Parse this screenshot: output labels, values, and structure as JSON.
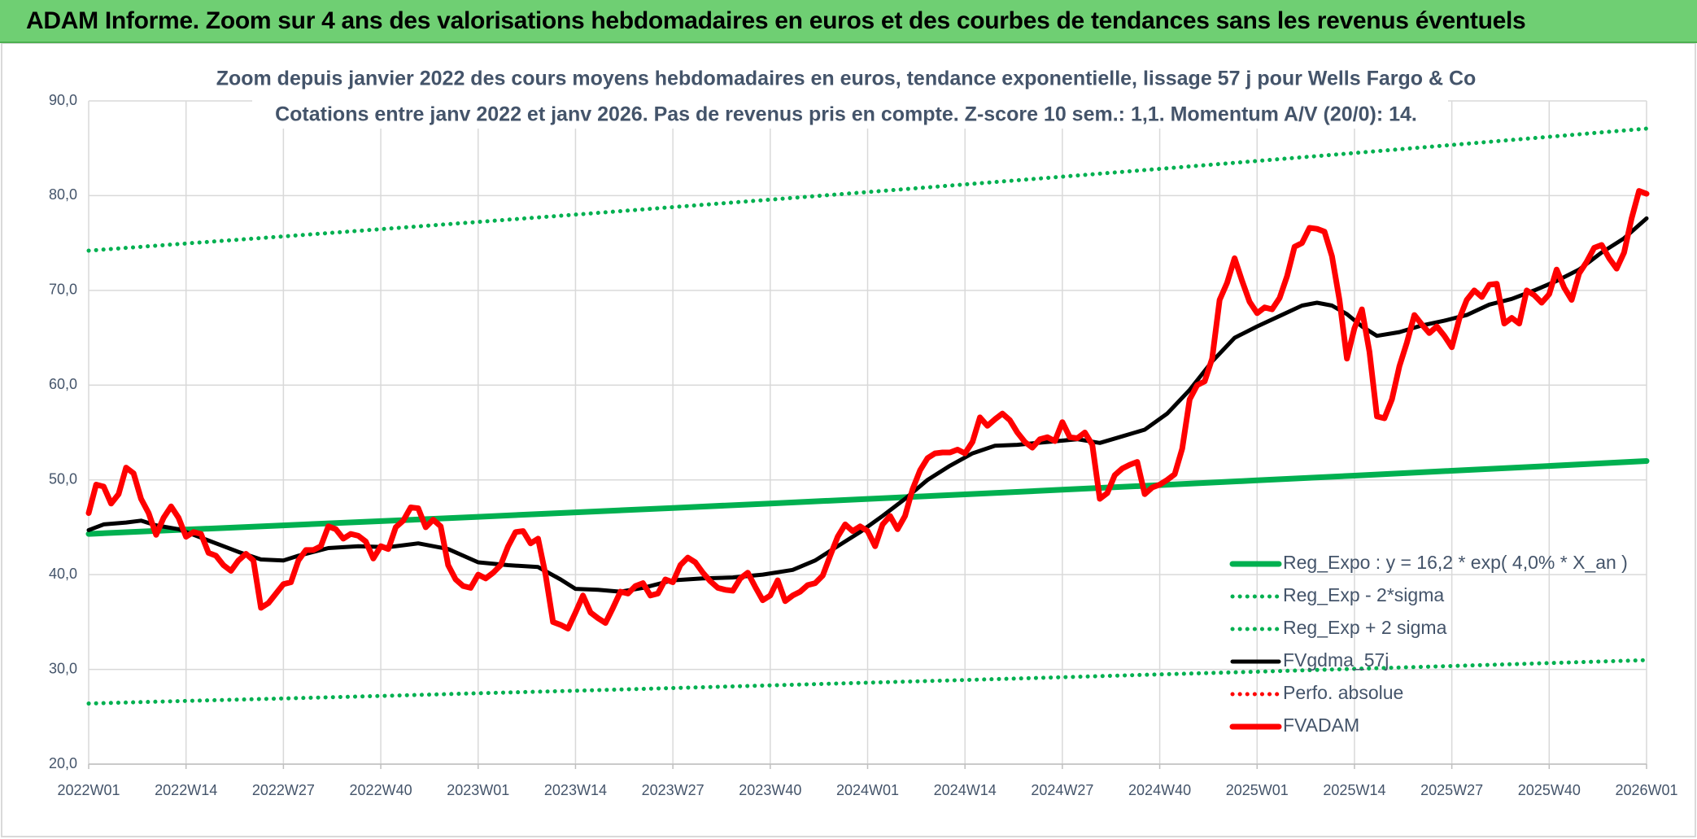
{
  "header": "ADAM Informe. Zoom sur 4 ans des valorisations hebdomadaires en euros et des courbes de tendances sans les revenus éventuels",
  "chart_data": {
    "type": "line",
    "title": "Zoom depuis janvier 2022 des cours moyens hebdomadaires en euros, tendance exponentielle, lissage 57 j pour Wells Fargo & Co",
    "subtitle": "Cotations entre janv 2022 et janv 2026. Pas de revenus pris en compte. Z-score 10 sem.: 1,1. Momentum A/V (20/0): 14.",
    "xlim": [
      0,
      208
    ],
    "xticks": [
      {
        "value": 0,
        "label": "2022W01"
      },
      {
        "value": 13,
        "label": "2022W14"
      },
      {
        "value": 26,
        "label": "2022W27"
      },
      {
        "value": 39,
        "label": "2022W40"
      },
      {
        "value": 52,
        "label": "2023W01"
      },
      {
        "value": 65,
        "label": "2023W14"
      },
      {
        "value": 78,
        "label": "2023W27"
      },
      {
        "value": 91,
        "label": "2023W40"
      },
      {
        "value": 104,
        "label": "2024W01"
      },
      {
        "value": 117,
        "label": "2024W14"
      },
      {
        "value": 130,
        "label": "2024W27"
      },
      {
        "value": 143,
        "label": "2024W40"
      },
      {
        "value": 156,
        "label": "2025W01"
      },
      {
        "value": 169,
        "label": "2025W14"
      },
      {
        "value": 182,
        "label": "2025W27"
      },
      {
        "value": 195,
        "label": "2025W40"
      },
      {
        "value": 208,
        "label": "2026W01"
      }
    ],
    "ylim": [
      20,
      90
    ],
    "yticks": [
      {
        "value": 20,
        "label": "20,0"
      },
      {
        "value": 30,
        "label": "30,0"
      },
      {
        "value": 40,
        "label": "40,0"
      },
      {
        "value": 50,
        "label": "50,0"
      },
      {
        "value": 60,
        "label": "60,0"
      },
      {
        "value": 70,
        "label": "70,0"
      },
      {
        "value": 80,
        "label": "80,0"
      },
      {
        "value": 90,
        "label": "90,0"
      }
    ],
    "grid": true,
    "legend": "bottom-right",
    "series": [
      {
        "name": "Reg_Expo : y = 16,2 * exp( 4,0% *  X_an )",
        "color": "#00b050",
        "line_style": "solid",
        "x": [
          0,
          13,
          26,
          39,
          52,
          65,
          78,
          91,
          104,
          117,
          130,
          143,
          156,
          169,
          182,
          195,
          208
        ],
        "values": [
          44.3,
          44.75,
          45.2,
          45.65,
          46.1,
          46.57,
          47.04,
          47.51,
          47.99,
          48.47,
          48.96,
          49.45,
          49.95,
          50.45,
          50.96,
          51.47,
          51.99
        ]
      },
      {
        "name": "Reg_Exp - 2*sigma",
        "color": "#00b050",
        "line_style": "dotted",
        "x": [
          0,
          13,
          26,
          39,
          52,
          65,
          78,
          91,
          104,
          117,
          130,
          143,
          156,
          169,
          182,
          195,
          208
        ],
        "values": [
          26.4,
          26.67,
          26.93,
          27.2,
          27.48,
          27.75,
          28.03,
          28.31,
          28.6,
          28.88,
          29.17,
          29.47,
          29.76,
          30.06,
          30.36,
          30.67,
          30.98
        ]
      },
      {
        "name": "Reg_Exp + 2 sigma",
        "color": "#00b050",
        "line_style": "dotted",
        "x": [
          0,
          13,
          26,
          39,
          52,
          65,
          78,
          91,
          104,
          117,
          130,
          143,
          156,
          169,
          182,
          195,
          208
        ],
        "values": [
          74.2,
          74.95,
          75.7,
          76.46,
          77.23,
          78.0,
          78.79,
          79.58,
          80.38,
          81.19,
          82.0,
          82.83,
          83.66,
          84.5,
          85.35,
          86.21,
          87.08
        ]
      },
      {
        "name": "FVgdma_57j",
        "color": "#000000",
        "line_style": "solid",
        "x": [
          0,
          2,
          5,
          7,
          9,
          12,
          14,
          17,
          20,
          23,
          26,
          28,
          32,
          36,
          40,
          44,
          48,
          52,
          56,
          60,
          63,
          65,
          68,
          71,
          74,
          78,
          82,
          86,
          90,
          94,
          97,
          100,
          103,
          106,
          109,
          112,
          115,
          118,
          121,
          124,
          128,
          132,
          135,
          138,
          141,
          144,
          147,
          150,
          153,
          156,
          159,
          162,
          164,
          166,
          168,
          170,
          172,
          175,
          178,
          181,
          184,
          187,
          190,
          193,
          196,
          199,
          202,
          205,
          208
        ],
        "values": [
          44.7,
          45.3,
          45.5,
          45.7,
          45.2,
          44.8,
          44.2,
          43.3,
          42.4,
          41.6,
          41.5,
          42,
          42.8,
          43,
          42.9,
          43.3,
          42.7,
          41.3,
          41,
          40.8,
          39.5,
          38.5,
          38.4,
          38.2,
          38.6,
          39.4,
          39.6,
          39.7,
          40,
          40.5,
          41.5,
          43,
          44.5,
          46.2,
          48,
          50,
          51.5,
          52.8,
          53.6,
          53.7,
          54,
          54.3,
          53.9,
          54.6,
          55.3,
          57,
          59.5,
          62.5,
          65,
          66.2,
          67.3,
          68.4,
          68.7,
          68.4,
          67.5,
          66.2,
          65.2,
          65.6,
          66.3,
          66.8,
          67.4,
          68.5,
          69.1,
          70,
          71,
          72.2,
          74,
          75.5,
          77.6
        ]
      },
      {
        "name": "Perfo. absolue",
        "color": "#ff0000",
        "line_style": "dotted",
        "x": [],
        "values": []
      },
      {
        "name": "FVADAM",
        "color": "#ff0000",
        "line_style": "solid",
        "x": [
          0,
          1,
          2,
          3,
          4,
          5,
          6,
          7,
          8,
          9,
          10,
          11,
          12,
          13,
          14,
          15,
          16,
          17,
          18,
          19,
          20,
          21,
          22,
          23,
          24,
          25,
          26,
          27,
          28,
          29,
          30,
          31,
          32,
          33,
          34,
          35,
          36,
          37,
          38,
          39,
          40,
          41,
          42,
          43,
          44,
          45,
          46,
          47,
          48,
          49,
          50,
          51,
          52,
          53,
          54,
          55,
          56,
          57,
          58,
          59,
          60,
          61,
          62,
          63,
          64,
          65,
          66,
          67,
          68,
          69,
          70,
          71,
          72,
          73,
          74,
          75,
          76,
          77,
          78,
          79,
          80,
          81,
          82,
          83,
          84,
          85,
          86,
          87,
          88,
          89,
          90,
          91,
          92,
          93,
          94,
          95,
          96,
          97,
          98,
          99,
          100,
          101,
          102,
          103,
          104,
          105,
          106,
          107,
          108,
          109,
          110,
          111,
          112,
          113,
          114,
          115,
          116,
          117,
          118,
          119,
          120,
          121,
          122,
          123,
          124,
          125,
          126,
          127,
          128,
          129,
          130,
          131,
          132,
          133,
          134,
          135,
          136,
          137,
          138,
          139,
          140,
          141,
          142,
          143,
          144,
          145,
          146,
          147,
          148,
          149,
          150,
          151,
          152,
          153,
          154,
          155,
          156,
          157,
          158,
          159,
          160,
          161,
          162,
          163,
          164,
          165,
          166,
          167,
          168,
          169,
          170,
          171,
          172,
          173,
          174,
          175,
          176,
          177,
          178,
          179,
          180,
          181,
          182,
          183,
          184,
          185,
          186,
          187,
          188,
          189,
          190,
          191,
          192,
          193,
          194,
          195,
          196,
          197,
          198,
          199,
          200,
          201,
          202,
          203,
          204,
          205,
          206,
          207,
          208
        ],
        "values": [
          46.5,
          49.5,
          49.3,
          47.5,
          48.5,
          51.3,
          50.7,
          48,
          46.5,
          44.2,
          46,
          47.2,
          46,
          44,
          44.5,
          44.3,
          42.3,
          42,
          41,
          40.4,
          41.5,
          42.2,
          41.5,
          36.5,
          37,
          38,
          39,
          39.2,
          41.5,
          42.6,
          42.6,
          43,
          45.1,
          44.8,
          43.8,
          44.3,
          44.1,
          43.5,
          41.7,
          43,
          42.7,
          45,
          45.7,
          47.1,
          47,
          45,
          45.8,
          45.1,
          41,
          39.5,
          38.8,
          38.6,
          40,
          39.6,
          40.2,
          41,
          43,
          44.5,
          44.6,
          43.3,
          43.8,
          40,
          35,
          34.7,
          34.3,
          36,
          37.8,
          36,
          35.4,
          34.9,
          36.5,
          38.2,
          38,
          38.8,
          39.1,
          37.8,
          38,
          39.5,
          39.2,
          41,
          41.8,
          41.3,
          40.2,
          39.3,
          38.6,
          38.4,
          38.3,
          39.6,
          40.2,
          38.7,
          37.3,
          37.8,
          39.4,
          37.2,
          37.8,
          38.2,
          38.9,
          39.1,
          39.9,
          42,
          44,
          45.3,
          44.6,
          45.1,
          44.6,
          43,
          45.3,
          46.2,
          44.8,
          46.2,
          49,
          51,
          52.3,
          52.8,
          52.9,
          52.9,
          53.2,
          52.8,
          54,
          56.6,
          55.7,
          56.4,
          57,
          56.3,
          55,
          54,
          53.4,
          54.3,
          54.5,
          54.1,
          56.1,
          54.5,
          54.4,
          55,
          53.7,
          48,
          48.6,
          50.5,
          51.2,
          51.6,
          51.9,
          48.5,
          49.2,
          49.5,
          50,
          50.6,
          53.3,
          58.5,
          60,
          60.4,
          62.8,
          69,
          70.8,
          73.4,
          71,
          68.8,
          67.6,
          68.2,
          68,
          69.2,
          71.5,
          74.6,
          75,
          76.6,
          76.5,
          76.2,
          73.6,
          69,
          62.8,
          66,
          68,
          63.5,
          56.7,
          56.5,
          58.5,
          62,
          64.5,
          67.4,
          66.4,
          65.5,
          66.2,
          65.2,
          64,
          67,
          69,
          70,
          69.3,
          70.6,
          70.7,
          66.5,
          67.1,
          66.5,
          70,
          69.5,
          68.7,
          69.6,
          72.2,
          70.3,
          69,
          71.8,
          73,
          74.5,
          74.8,
          73.4,
          72.3,
          74,
          77.6,
          80.5,
          80.2
        ]
      }
    ]
  }
}
